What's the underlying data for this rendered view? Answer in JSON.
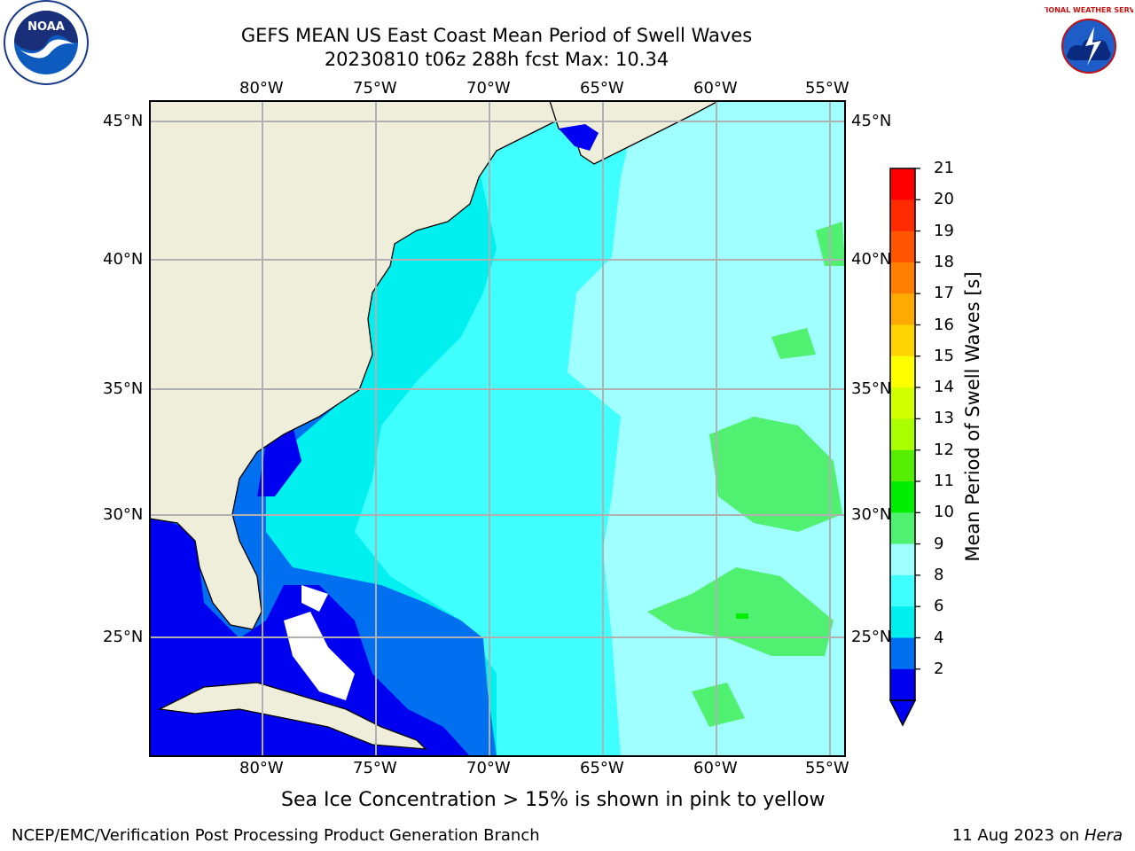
{
  "header": {
    "title_line1": "GEFS MEAN US East Coast Mean Period of Swell Waves",
    "title_line2": "20230810 t06z 288h fcst   Max: 10.34"
  },
  "logos": {
    "left": "NOAA",
    "right": "NATIONAL WEATHER SERVICE"
  },
  "map": {
    "lon_labels": [
      "80°W",
      "75°W",
      "70°W",
      "65°W",
      "60°W",
      "55°W"
    ],
    "lat_labels": [
      "45°N",
      "40°N",
      "35°N",
      "30°N",
      "25°N"
    ],
    "colors": {
      "land": "#efeedb",
      "ocean_dark_blue": "#0000f0",
      "ocean_blue": "#0070f0",
      "cyan": "#00f0f0",
      "light_cyan": "#40ffff",
      "pale_cyan": "#a0ffff",
      "light_green": "#50f070",
      "ice_white": "#ffffff",
      "grid": "#b0b0b0"
    }
  },
  "colorbar": {
    "label": "Mean Period of Swell Waves [s]",
    "ticks": [
      "21",
      "20",
      "19",
      "18",
      "17",
      "16",
      "15",
      "14",
      "13",
      "12",
      "11",
      "10",
      "9",
      "8",
      "6",
      "4",
      "2"
    ],
    "colors": [
      "#ff0000",
      "#ff2a00",
      "#ff5500",
      "#ff7f00",
      "#ffaa00",
      "#ffd400",
      "#ffff00",
      "#d4ff00",
      "#aaff00",
      "#55ee00",
      "#00ee00",
      "#50f070",
      "#a0ffff",
      "#40ffff",
      "#00f0f0",
      "#0070f0",
      "#0000f0"
    ]
  },
  "footer": {
    "sea_ice_note": "Sea Ice Concentration > 15% is shown in pink to yellow",
    "left": "NCEP/EMC/Verification Post Processing Product Generation Branch",
    "right_prefix": "11 Aug 2023 on ",
    "right_host": "Hera"
  }
}
